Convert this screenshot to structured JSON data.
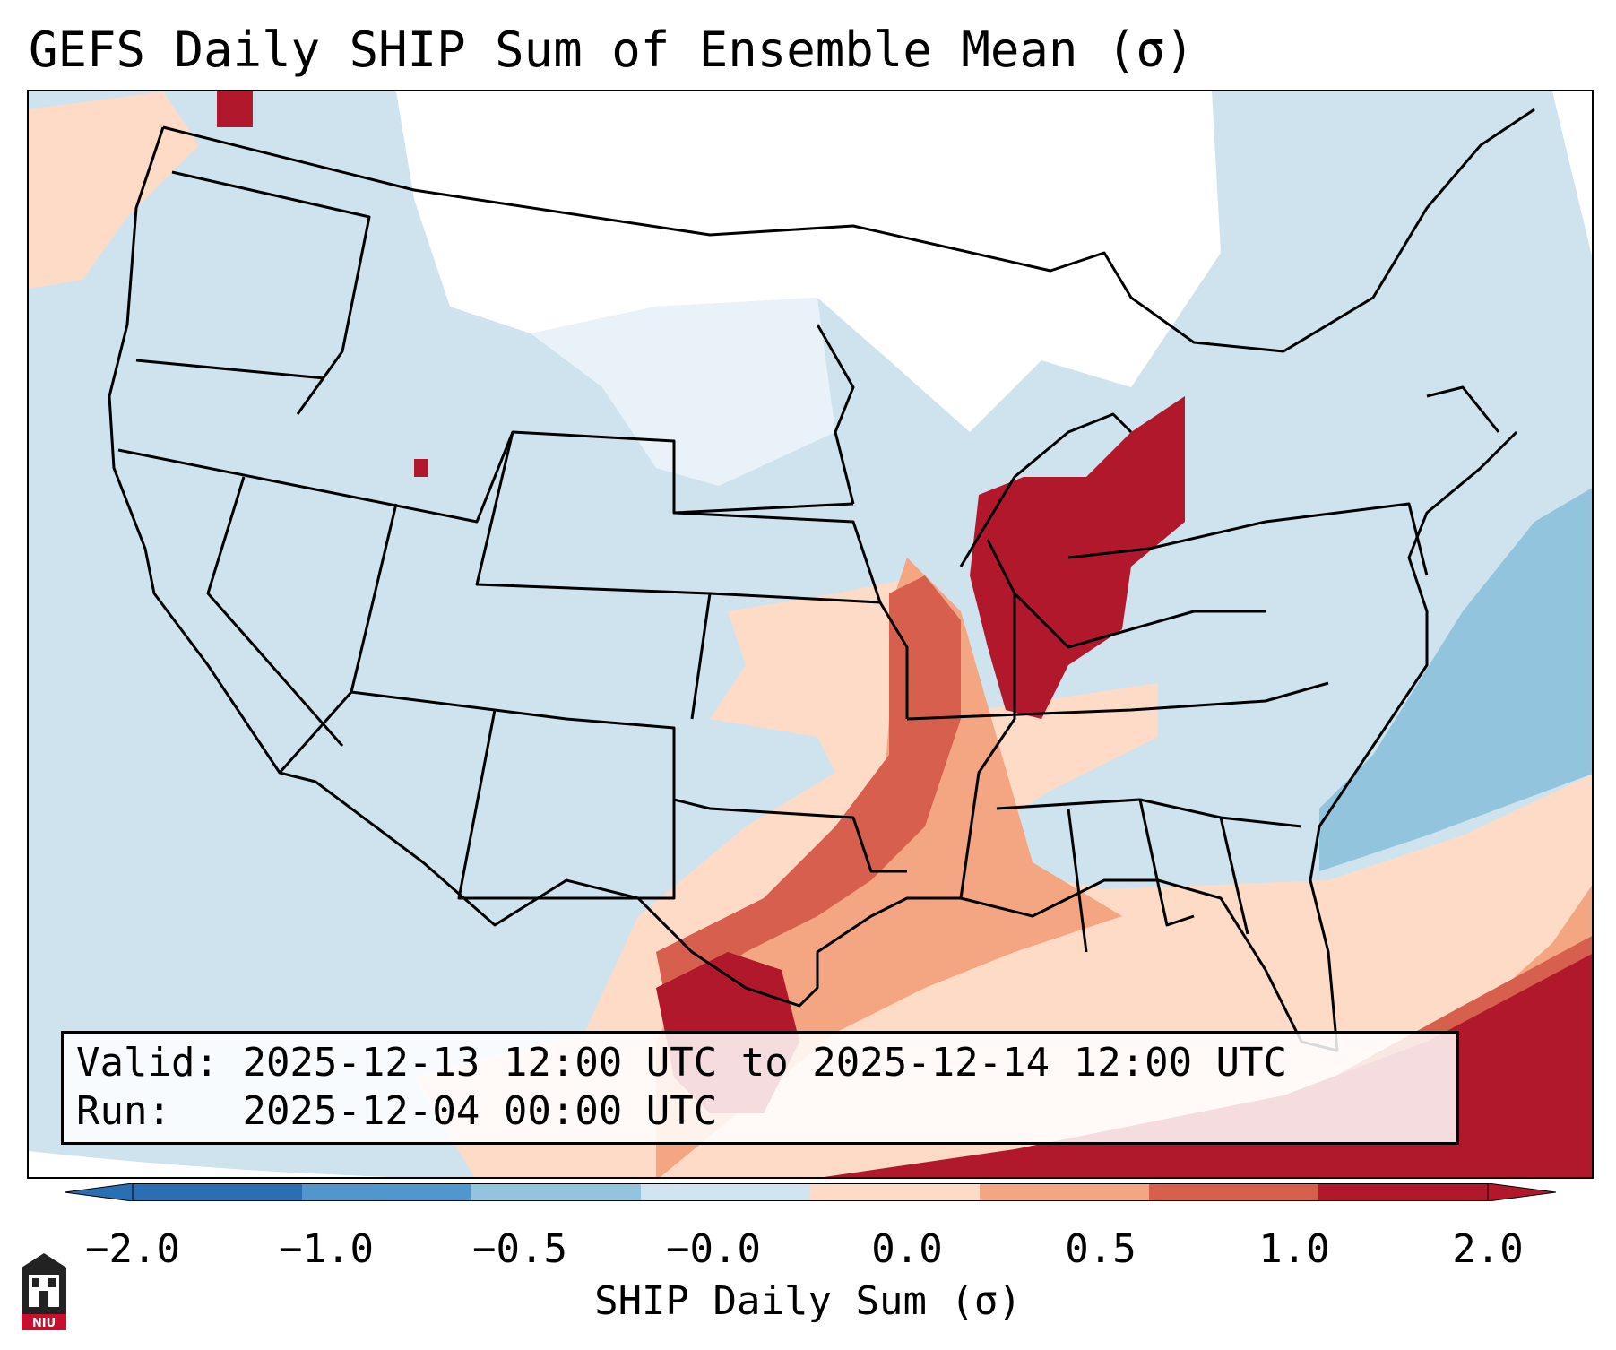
{
  "title": "GEFS Daily SHIP Sum of Ensemble Mean (σ)",
  "info": {
    "valid_label": "Valid:",
    "valid_value": "2025-12-13 12:00 UTC to 2025-12-14 12:00 UTC",
    "run_label": "Run:",
    "run_value": "2025-12-04 00:00 UTC"
  },
  "colorbar": {
    "label": "SHIP Daily Sum (σ)",
    "ticks": [
      "−2.0",
      "−1.0",
      "−0.5",
      "−0.0",
      "0.0",
      "0.5",
      "1.0",
      "2.0"
    ],
    "colors": [
      "#2b6fb3",
      "#4f97cc",
      "#92c4de",
      "#d1e5f0",
      "#fddbc7",
      "#f4a582",
      "#d6604d",
      "#b2182b"
    ],
    "extend": "both"
  },
  "map": {
    "region": "Contiguous United States",
    "background_value_color": "#d1e5f0",
    "ocean_outside_color": "#ffffff"
  },
  "logo": {
    "text": "NIU"
  }
}
